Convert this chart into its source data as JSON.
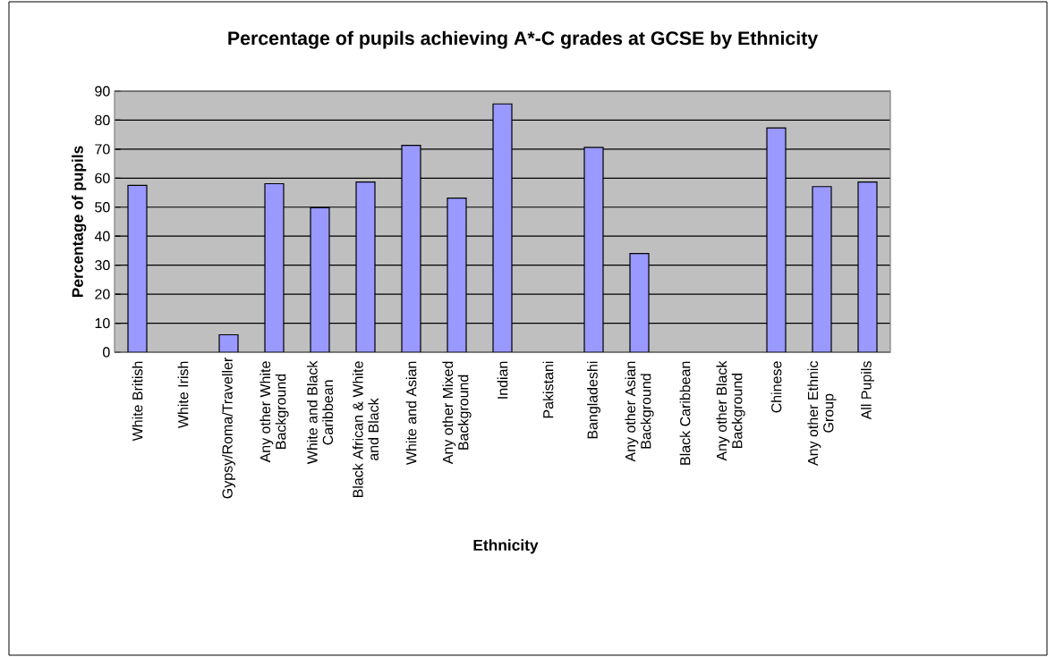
{
  "chart_data": {
    "type": "bar",
    "title": "Percentage of pupils achieving A*-C grades at GCSE by Ethnicity",
    "xlabel": "Ethnicity",
    "ylabel": "Percentage of pupils",
    "categories": [
      "White British",
      "White Irish",
      "Gypsy/Roma/Traveller",
      "Any other White Background",
      "White and Black Caribbean",
      "Black African & White and Black",
      "White and Asian",
      "Any other Mixed Background",
      "Indian",
      "Pakistani",
      "Bangladeshi",
      "Any other Asian Background",
      "Black Caribbean",
      "Any other Black Background",
      "Chinese",
      "Any other Ethnic Group",
      "All Pupils"
    ],
    "values": [
      57.5,
      null,
      6.0,
      58.1,
      49.8,
      58.7,
      71.3,
      53.1,
      85.6,
      null,
      70.6,
      34.0,
      null,
      null,
      77.3,
      57.1,
      58.7
    ],
    "color": "#9999ff",
    "ylim": [
      0,
      90
    ],
    "yticks": [
      0,
      10,
      20,
      30,
      40,
      50,
      60,
      70,
      80,
      90
    ],
    "grid": "y"
  }
}
